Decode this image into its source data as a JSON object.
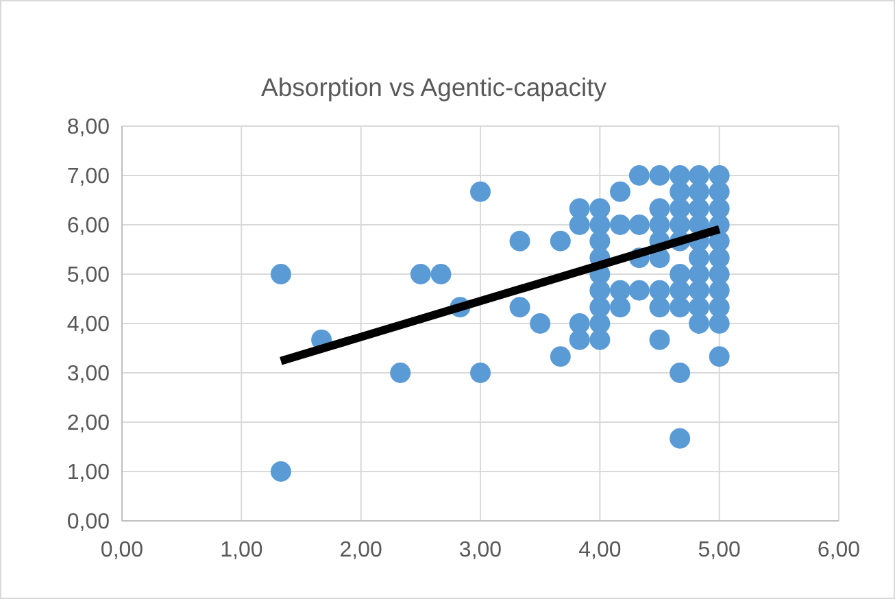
{
  "chart_data": {
    "type": "scatter",
    "title": "Absorption vs Agentic-capacity",
    "xlim": [
      0,
      6
    ],
    "ylim": [
      0,
      8
    ],
    "xticks": [
      {
        "value": 0,
        "label": "0,00"
      },
      {
        "value": 1,
        "label": "1,00"
      },
      {
        "value": 2,
        "label": "2,00"
      },
      {
        "value": 3,
        "label": "3,00"
      },
      {
        "value": 4,
        "label": "4,00"
      },
      {
        "value": 5,
        "label": "5,00"
      },
      {
        "value": 6,
        "label": "6,00"
      }
    ],
    "yticks": [
      {
        "value": 0,
        "label": "0,00"
      },
      {
        "value": 1,
        "label": "1,00"
      },
      {
        "value": 2,
        "label": "2,00"
      },
      {
        "value": 3,
        "label": "3,00"
      },
      {
        "value": 4,
        "label": "4,00"
      },
      {
        "value": 5,
        "label": "5,00"
      },
      {
        "value": 6,
        "label": "6,00"
      },
      {
        "value": 7,
        "label": "7,00"
      },
      {
        "value": 8,
        "label": "8,00"
      }
    ],
    "grid": true,
    "series": [
      {
        "marker": "circle",
        "color": "#5b9bd5",
        "x": [
          1.33,
          1.33,
          1.67,
          2.33,
          2.5,
          2.67,
          2.83,
          3,
          3,
          3.33,
          3.33,
          3.5,
          3.67,
          3.67,
          3.83,
          3.83,
          3.83,
          3.83,
          4,
          4,
          4,
          4,
          4,
          4,
          4,
          4,
          4,
          4.17,
          4.17,
          4.17,
          4.17,
          4.33,
          4.33,
          4.33,
          4.33,
          4.5,
          4.5,
          4.5,
          4.5,
          4.5,
          4.5,
          4.5,
          4.5,
          4.67,
          4.67,
          4.67,
          4.67,
          4.67,
          4.67,
          4.67,
          4.67,
          4.67,
          4.67,
          4.83,
          4.83,
          4.83,
          4.83,
          4.83,
          4.83,
          4.83,
          4.83,
          4.83,
          4.83,
          5,
          5,
          5,
          5,
          5,
          5,
          5,
          5,
          5,
          5,
          5
        ],
        "values": [
          5,
          1,
          3.67,
          3,
          5,
          5,
          4.33,
          6.67,
          3,
          5.67,
          4.33,
          4,
          5.67,
          3.33,
          6.33,
          6,
          4,
          3.67,
          6.33,
          6,
          5.67,
          5.33,
          5,
          4.67,
          4.33,
          4,
          3.67,
          6.67,
          6,
          4.67,
          4.33,
          7,
          6,
          5.33,
          4.67,
          7,
          6.33,
          6,
          5.67,
          5.33,
          4.67,
          4.33,
          3.67,
          7,
          6.67,
          6.33,
          6,
          5.67,
          5,
          4.67,
          4.33,
          3,
          1.67,
          7,
          6.67,
          6.33,
          6,
          5.67,
          5.33,
          5,
          4.67,
          4.33,
          4,
          7,
          6.67,
          6.33,
          6,
          5.67,
          5.33,
          5,
          4.67,
          4.33,
          4,
          3.33
        ]
      },
      {
        "type": "line",
        "color": "#000000",
        "line_style": "solid",
        "x": [
          1.33,
          5
        ],
        "values": [
          3.24,
          5.91
        ]
      }
    ]
  }
}
